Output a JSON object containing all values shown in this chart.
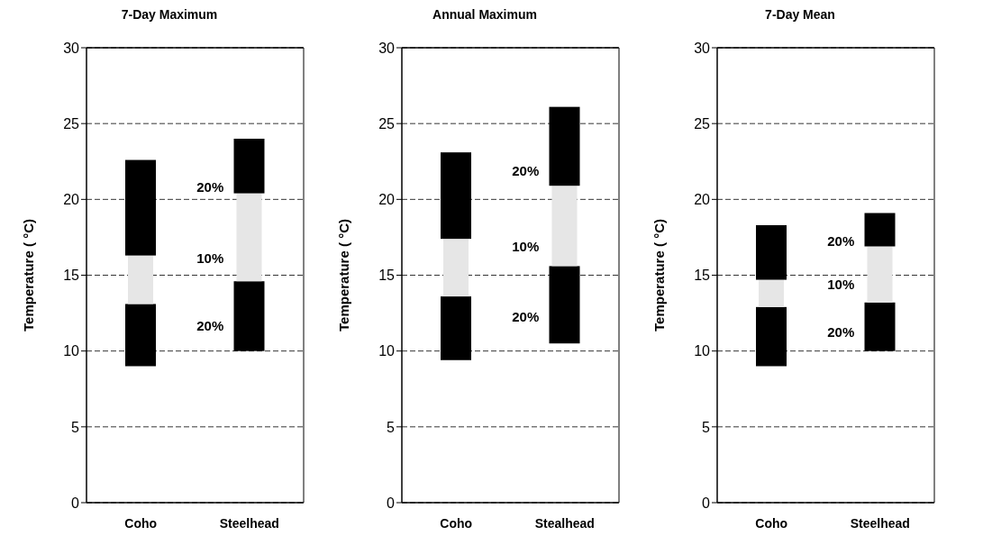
{
  "chart_data": [
    {
      "type": "bar",
      "title": "7-Day Maximum",
      "ylabel": "Temperature ( °C)",
      "categories": [
        "Coho",
        "Steelhead"
      ],
      "ylim": [
        0,
        30
      ],
      "yticks": [
        0,
        5,
        10,
        15,
        20,
        25,
        30
      ],
      "grid": "y",
      "series": [
        {
          "color": "#000000",
          "base": [
            9.0,
            10.0
          ],
          "values": [
            4.1,
            4.6
          ]
        },
        {
          "color": "#e6e6e6",
          "base": [
            13.1,
            14.6
          ],
          "values": [
            3.2,
            5.8
          ]
        },
        {
          "color": "#000000",
          "base": [
            16.3,
            20.4
          ],
          "values": [
            6.3,
            3.6
          ]
        }
      ],
      "annotations": [
        "20%",
        "10%",
        "20%"
      ]
    },
    {
      "type": "bar",
      "title": "Annual Maximum",
      "ylabel": "Temperature ( °C)",
      "categories": [
        "Coho",
        "Stealhead"
      ],
      "ylim": [
        0,
        30
      ],
      "yticks": [
        0,
        5,
        10,
        15,
        20,
        25,
        30
      ],
      "grid": "y",
      "series": [
        {
          "color": "#000000",
          "base": [
            9.4,
            10.5
          ],
          "values": [
            4.2,
            5.1
          ]
        },
        {
          "color": "#e6e6e6",
          "base": [
            13.6,
            15.6
          ],
          "values": [
            3.8,
            5.3
          ]
        },
        {
          "color": "#000000",
          "base": [
            17.4,
            20.9
          ],
          "values": [
            5.7,
            5.2
          ]
        }
      ],
      "annotations": [
        "20%",
        "10%",
        "20%"
      ]
    },
    {
      "type": "bar",
      "title": "7-Day Mean",
      "ylabel": "Temperature ( °C)",
      "categories": [
        "Coho",
        "Steelhead"
      ],
      "ylim": [
        0,
        30
      ],
      "yticks": [
        0,
        5,
        10,
        15,
        20,
        25,
        30
      ],
      "grid": "y",
      "series": [
        {
          "color": "#000000",
          "base": [
            9.0,
            10.0
          ],
          "values": [
            3.9,
            3.2
          ]
        },
        {
          "color": "#e6e6e6",
          "base": [
            12.9,
            13.2
          ],
          "values": [
            1.8,
            3.7
          ]
        },
        {
          "color": "#000000",
          "base": [
            14.7,
            16.9
          ],
          "values": [
            3.6,
            2.2
          ]
        }
      ],
      "annotations": [
        "20%",
        "10%",
        "20%"
      ]
    }
  ]
}
